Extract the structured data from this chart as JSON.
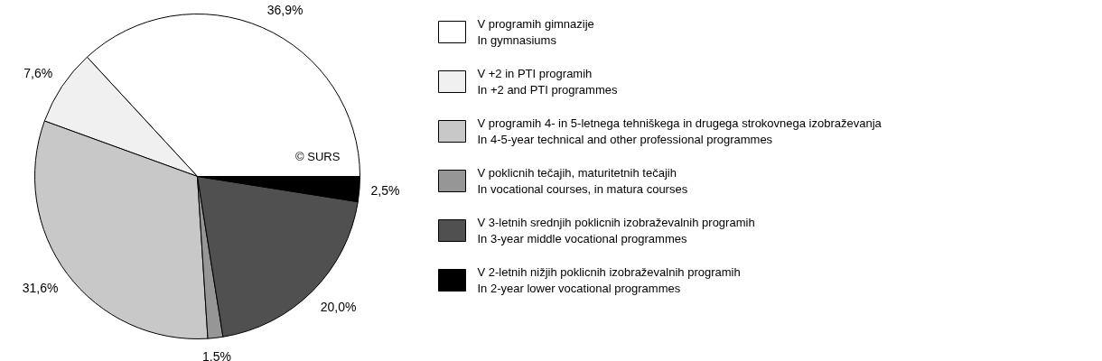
{
  "chart_data": {
    "type": "pie",
    "categories": [
      "V programih gimnazije\n In gymnasiums",
      "V +2 in PTI programih\nIn +2 and PTI programmes",
      "V programih 4- in 5-letnega tehniškega in drugega strokovnega izobraževanja\nIn 4-5-year technical and other professional programmes",
      "V poklicnih tečajih, maturitetnih tečajih\nIn vocational courses, in matura courses",
      "V 3-letnih srednjih poklicnih izobraževalnih programih\nIn 3-year middle vocational programmes",
      "V 2-letnih nižjih poklicnih izobraževalnih programih\nIn 2-year lower vocational programmes"
    ],
    "values": [
      36.9,
      7.6,
      31.6,
      1.5,
      20.0,
      2.5
    ],
    "value_labels": [
      "36,9%",
      "7,6%",
      "31,6%",
      "1.5%",
      "20,0%",
      "2,5%"
    ],
    "colors": [
      "#ffffff",
      "#f0f0f0",
      "#c8c8c8",
      "#969696",
      "#505050",
      "#000000"
    ],
    "legend": "right",
    "annotations": [
      "© SURS"
    ]
  }
}
